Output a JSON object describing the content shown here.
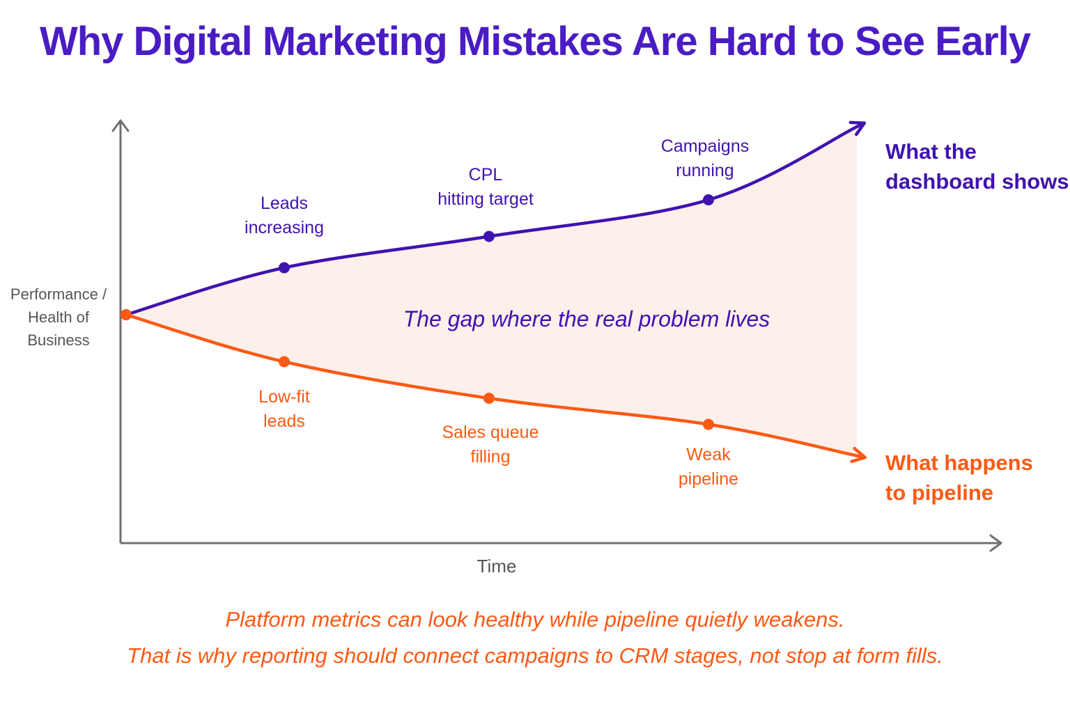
{
  "title": "Why Digital Marketing Mistakes Are Hard to See Early",
  "colors": {
    "dashboard": "#4012b0",
    "pipeline": "#fa5a14",
    "gap_fill": "#fdefe9",
    "axis": "#707070",
    "title": "#4a1cc4"
  },
  "chart_data": {
    "type": "line",
    "xlabel": "Time",
    "ylabel": [
      "Performance /",
      "Health of",
      "Business"
    ],
    "x": [
      0,
      1,
      2,
      3,
      4
    ],
    "series": [
      {
        "name": "What the dashboard shows",
        "name_lines": [
          "What the",
          "dashboard shows"
        ],
        "values": [
          50,
          59,
          65,
          72,
          86
        ],
        "point_labels": [
          null,
          [
            "Leads",
            "increasing"
          ],
          [
            "CPL",
            "hitting target"
          ],
          [
            "Campaigns",
            "running"
          ],
          null
        ]
      },
      {
        "name": "What happens to pipeline",
        "name_lines": [
          "What happens",
          "to pipeline"
        ],
        "values": [
          50,
          41,
          34,
          29,
          23
        ],
        "point_labels": [
          null,
          [
            "Low-fit",
            "leads"
          ],
          [
            "Sales queue",
            "filling"
          ],
          [
            "Weak",
            "pipeline"
          ],
          null
        ]
      }
    ],
    "gap_annotation": "The gap where the real problem lives",
    "grid": false,
    "legend": "none (series labelled at line ends)"
  },
  "footer": {
    "line1": "Platform metrics can look healthy while pipeline quietly weakens.",
    "line2": "That is why reporting should connect campaigns to CRM stages, not stop at form fills."
  }
}
